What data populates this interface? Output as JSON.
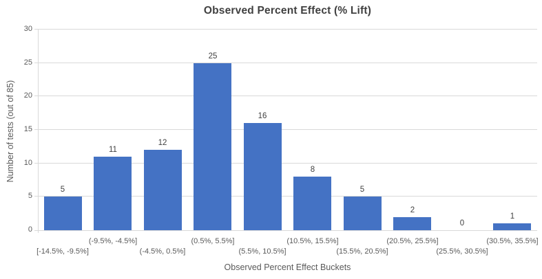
{
  "chart_data": {
    "type": "bar",
    "title": "Observed Percent Effect (% Lift)",
    "xlabel": "Observed Percent Effect Buckets",
    "ylabel": "Number of tests (out of 85)",
    "categories": [
      "[-14.5%, -9.5%]",
      "(-9.5%, -4.5%]",
      "(-4.5%, 0.5%]",
      "(0.5%, 5.5%]",
      "(5.5%, 10.5%]",
      "(10.5%, 15.5%]",
      "(15.5%, 20.5%]",
      "(20.5%, 25.5%]",
      "(25.5%, 30.5%]",
      "(30.5%, 35.5%]"
    ],
    "values": [
      5,
      11,
      12,
      25,
      16,
      8,
      5,
      2,
      0,
      1
    ],
    "ylim": [
      0,
      30
    ],
    "yticks": [
      0,
      5,
      10,
      15,
      20,
      25,
      30
    ],
    "grid": true,
    "legend": "none",
    "data_labels": true,
    "colors": {
      "bar": "#4472c4",
      "title_text": "#404040",
      "axis_text": "#595959",
      "data_label_text": "#404040",
      "gridline": "#d9d9d9"
    }
  }
}
